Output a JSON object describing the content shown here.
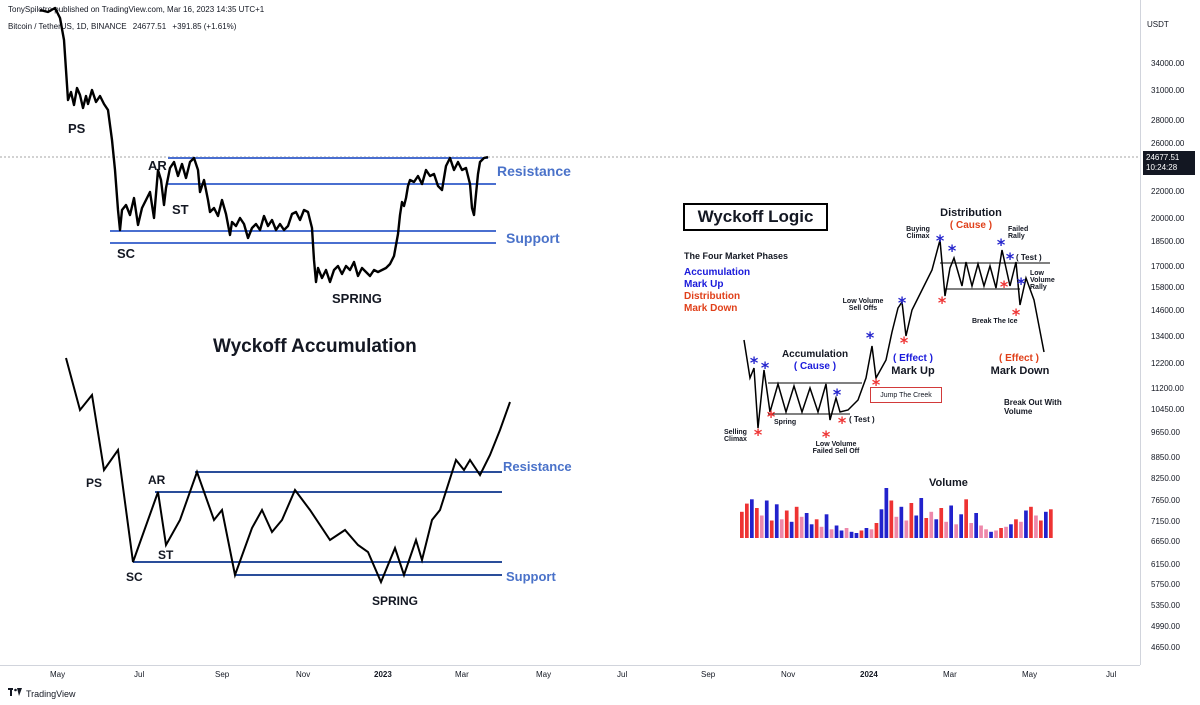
{
  "header": {
    "published": "TonySpilotro published on TradingView.com, Mar 16, 2023 14:35 UTC+1",
    "symbol": "Bitcoin / TetherUS, 1D, BINANCE",
    "last_price": "24677.51",
    "change": "+391.85 (+1.61%)"
  },
  "price_axis": {
    "currency": "USDT",
    "labels": [
      "34000.00",
      "31000.00",
      "28000.00",
      "26000.00",
      "22000.00",
      "20000.00",
      "18500.00",
      "17000.00",
      "15800.00",
      "14600.00",
      "13400.00",
      "12200.00",
      "11200.00",
      "10450.00",
      "9650.00",
      "8850.00",
      "8250.00",
      "7650.00",
      "7150.00",
      "6650.00",
      "6150.00",
      "5750.00",
      "5350.00",
      "4990.00",
      "4650.00"
    ],
    "current_price": "24677.51",
    "countdown": "10:24:28"
  },
  "time_axis": {
    "labels": [
      {
        "text": "May",
        "bold": false
      },
      {
        "text": "Jul",
        "bold": false
      },
      {
        "text": "Sep",
        "bold": false
      },
      {
        "text": "Nov",
        "bold": false
      },
      {
        "text": "2023",
        "bold": true
      },
      {
        "text": "Mar",
        "bold": false
      },
      {
        "text": "May",
        "bold": false
      },
      {
        "text": "Jul",
        "bold": false
      },
      {
        "text": "Sep",
        "bold": false
      },
      {
        "text": "Nov",
        "bold": false
      },
      {
        "text": "2024",
        "bold": true
      },
      {
        "text": "Mar",
        "bold": false
      },
      {
        "text": "May",
        "bold": false
      },
      {
        "text": "Jul",
        "bold": false
      }
    ]
  },
  "footer": {
    "brand": "TradingView",
    "logo": "tradingview-logo"
  },
  "chart_data": [
    {
      "type": "line",
      "name": "BTCUSDT price path",
      "labels": {
        "ps": "PS",
        "sc": "SC",
        "ar": "AR",
        "st": "ST",
        "spring": "SPRING",
        "resistance": "Resistance",
        "support": "Support"
      },
      "y": [
        31500,
        30300,
        28700,
        28900,
        28000,
        27400,
        26400,
        24600,
        23000,
        21800,
        20800,
        20200,
        19800,
        20100,
        20500,
        20900,
        20300,
        21200,
        22300,
        23000,
        23400,
        22900,
        22500,
        24000,
        23800,
        22800,
        22100,
        21700,
        21100,
        20600,
        20300,
        20100,
        19500,
        19400,
        19900,
        20200,
        20100,
        19700,
        19400,
        18900,
        19000,
        19400,
        19800,
        20300,
        20100,
        19900,
        19400,
        19100,
        16900,
        16600,
        16500,
        16800,
        17200,
        17000,
        16900,
        17400,
        16700,
        16600,
        16800,
        17000,
        17300,
        18600,
        21100,
        22900,
        23200,
        23400,
        23600,
        22900,
        23500,
        24300,
        24000,
        22400,
        22900,
        24677
      ]
    },
    {
      "type": "line",
      "name": "Wyckoff Accumulation schematic",
      "title": "Wyckoff Accumulation",
      "labels": {
        "ps": "PS",
        "sc": "SC",
        "ar": "AR",
        "st": "ST",
        "spring": "SPRING",
        "resistance": "Resistance",
        "support": "Support"
      }
    },
    {
      "type": "bar",
      "name": "Wyckoff Logic schematic",
      "title": "Wyckoff Logic",
      "phases_title": "The Four Market Phases",
      "phases": [
        {
          "text": "Accumulation",
          "color": "#1a1adb"
        },
        {
          "text": "Mark Up",
          "color": "#1a1adb"
        },
        {
          "text": "Distribution",
          "color": "#e0401a"
        },
        {
          "text": "Mark Down",
          "color": "#e0401a"
        }
      ],
      "annotations": {
        "accumulation": "Accumulation",
        "cause": "( Cause )",
        "distribution": "Distribution",
        "cause2": "( Cause )",
        "effect": "( Effect )",
        "mark_up": "Mark Up",
        "effect2": "( Effect )",
        "mark_down": "Mark Down",
        "buying_climax": "Buying Climax",
        "failed_rally": "Failed Rally",
        "test1": "( Test )",
        "test2": "( Test )",
        "low_volume_rally": "Low Volume Rally",
        "break_the_ice": "Break The Ice",
        "low_volume_sell_offs": "Low Volume Sell Offs",
        "jump_the_creek": "Jump The Creek",
        "selling_climax": "Selling Climax",
        "spring": "Spring",
        "low_volume_failed_sell_off": "Low Volume Failed Sell Off",
        "break_out_with_volume": "Break Out With Volume",
        "volume": "Volume"
      },
      "volume": [
        42,
        55,
        62,
        48,
        36,
        60,
        28,
        54,
        30,
        44,
        26,
        50,
        34,
        40,
        22,
        30,
        18,
        38,
        14,
        20,
        12,
        16,
        10,
        8,
        12,
        16,
        14,
        24,
        46,
        80,
        60,
        34,
        50,
        28,
        56,
        36,
        64,
        32,
        42,
        30,
        48,
        26,
        52,
        22,
        38,
        62,
        24,
        40,
        20,
        14,
        10,
        12,
        16,
        18,
        22,
        30,
        26,
        44,
        50,
        36,
        28,
        42,
        46
      ],
      "volume_colors": [
        "#e33",
        "#e33",
        "#22c",
        "#e33",
        "#e8a",
        "#22c",
        "#e33",
        "#22c",
        "#e8a",
        "#e33",
        "#22c",
        "#e33",
        "#e8a",
        "#22c",
        "#22c",
        "#e33",
        "#e8a",
        "#22c",
        "#e8a",
        "#22c",
        "#22c",
        "#e8a",
        "#22c",
        "#22c",
        "#e33",
        "#22c",
        "#e8a",
        "#e33",
        "#22c",
        "#22c",
        "#e33",
        "#e8a",
        "#22c",
        "#e8a",
        "#e33",
        "#22c",
        "#22c",
        "#e33",
        "#e8a",
        "#22c",
        "#e33",
        "#e8a",
        "#22c",
        "#e8a",
        "#22c",
        "#e33",
        "#e8a",
        "#22c",
        "#e8a",
        "#e8a",
        "#22c",
        "#e8a",
        "#e33",
        "#e8a",
        "#22c",
        "#e33",
        "#e8a",
        "#22c",
        "#e33",
        "#e8a",
        "#e33",
        "#22c",
        "#e33"
      ]
    }
  ]
}
